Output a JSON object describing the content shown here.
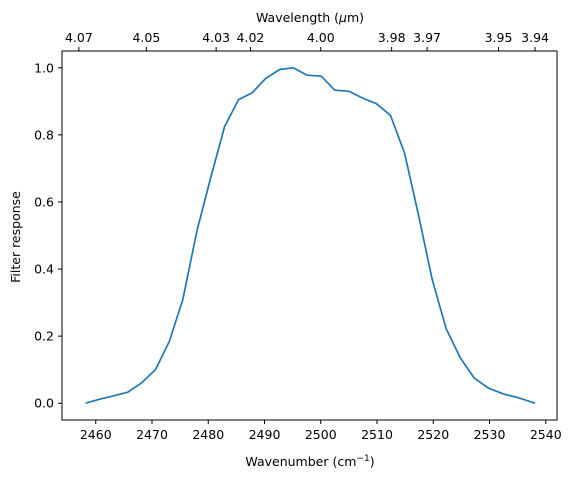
{
  "chart_data": {
    "type": "line",
    "title": "",
    "xlabel": "Wavenumber (cm",
    "xlabel_sup": "−1",
    "xlabel_suffix": ")",
    "ylabel": "Filter response",
    "top_xlabel": "Wavelength (",
    "top_xlabel_mu": "μ",
    "top_xlabel_suffix": "m)",
    "xlim": [
      2454.0,
      2542.0
    ],
    "ylim": [
      -0.05,
      1.05
    ],
    "xticks": [
      2460,
      2470,
      2480,
      2490,
      2500,
      2510,
      2520,
      2530,
      2540
    ],
    "yticks": [
      0.0,
      0.2,
      0.4,
      0.6,
      0.8,
      1.0
    ],
    "ytick_labels": [
      "0.0",
      "0.2",
      "0.4",
      "0.6",
      "0.8",
      "1.0"
    ],
    "top_xticks": [
      {
        "label": "4.07",
        "at": 2457.0
      },
      {
        "label": "4.05",
        "at": 2469.0
      },
      {
        "label": "4.03",
        "at": 2481.4
      },
      {
        "label": "4.02",
        "at": 2487.5
      },
      {
        "label": "4.00",
        "at": 2500.0
      },
      {
        "label": "3.98",
        "at": 2512.6
      },
      {
        "label": "3.97",
        "at": 2518.9
      },
      {
        "label": "3.95",
        "at": 2531.6
      },
      {
        "label": "3.94",
        "at": 2538.1
      }
    ],
    "series": [
      {
        "color": "#1f77b4",
        "x": [
          2458.2,
          2460.7,
          2463.2,
          2465.7,
          2468.1,
          2470.6,
          2473.1,
          2475.5,
          2478.0,
          2480.4,
          2482.9,
          2485.4,
          2487.8,
          2490.2,
          2492.7,
          2495.1,
          2497.6,
          2500.1,
          2502.5,
          2505.0,
          2507.4,
          2509.9,
          2512.4,
          2514.9,
          2517.4,
          2519.8,
          2522.3,
          2524.8,
          2527.3,
          2529.8,
          2532.4,
          2535.0,
          2538.1
        ],
        "y": [
          0.0,
          0.012,
          0.022,
          0.033,
          0.06,
          0.1,
          0.185,
          0.31,
          0.515,
          0.67,
          0.825,
          0.905,
          0.925,
          0.968,
          0.995,
          1.0,
          0.978,
          0.975,
          0.933,
          0.93,
          0.91,
          0.893,
          0.858,
          0.745,
          0.56,
          0.37,
          0.222,
          0.135,
          0.075,
          0.045,
          0.028,
          0.017,
          0.0
        ]
      }
    ]
  }
}
